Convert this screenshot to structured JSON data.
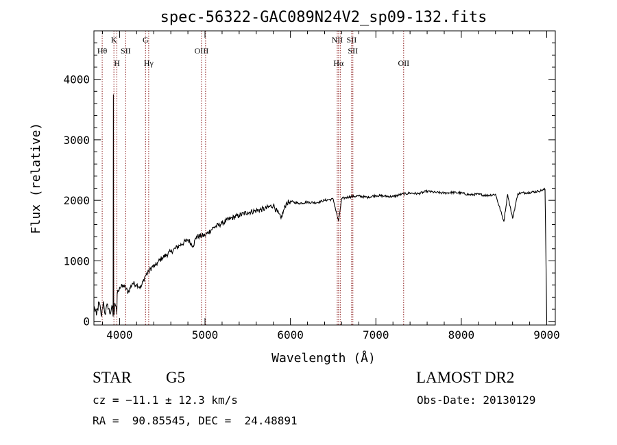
{
  "chart_data": {
    "type": "line",
    "title": "spec-56322-GAC089N24V2_sp09-132.fits",
    "xlabel": "Wavelength (Å)",
    "ylabel": "Flux (relative)",
    "xlim": [
      3700,
      9100
    ],
    "ylim": [
      -60,
      4800
    ],
    "xticks": [
      4000,
      5000,
      6000,
      7000,
      8000,
      9000
    ],
    "yticks": [
      0,
      1000,
      2000,
      3000,
      4000
    ],
    "grid": false,
    "line_color": "#000000",
    "marker_color": "#8b1a1a",
    "series": [
      {
        "x": [
          3700,
          3730,
          3760,
          3790,
          3810,
          3830,
          3860,
          3890,
          3910,
          3925,
          3928,
          3931,
          3936,
          3945,
          3955,
          3968,
          3972,
          3980,
          4000,
          4050,
          4101,
          4150,
          4200,
          4250,
          4300,
          4340,
          4380,
          4420,
          4450,
          4500,
          4600,
          4700,
          4800,
          4861,
          4900,
          5000,
          5100,
          5200,
          5300,
          5400,
          5500,
          5600,
          5700,
          5800,
          5890,
          5950,
          6000,
          6100,
          6200,
          6300,
          6400,
          6500,
          6563,
          6600,
          6700,
          6800,
          6900,
          7000,
          7100,
          7200,
          7300,
          7400,
          7500,
          7600,
          7700,
          7800,
          7900,
          8000,
          8100,
          8200,
          8300,
          8400,
          8498,
          8542,
          8600,
          8662,
          8700,
          8800,
          8900,
          8980,
          9000
        ],
        "y": [
          250,
          100,
          320,
          80,
          330,
          120,
          280,
          120,
          260,
          80,
          3750,
          160,
          100,
          300,
          260,
          120,
          450,
          520,
          560,
          590,
          480,
          630,
          610,
          560,
          750,
          820,
          900,
          920,
          980,
          1050,
          1150,
          1250,
          1350,
          1250,
          1400,
          1420,
          1550,
          1620,
          1700,
          1750,
          1800,
          1830,
          1860,
          1920,
          1700,
          1950,
          1980,
          1950,
          1970,
          1960,
          2000,
          2020,
          1650,
          2030,
          2060,
          2070,
          2050,
          2080,
          2070,
          2060,
          2100,
          2120,
          2110,
          2150,
          2130,
          2120,
          2130,
          2120,
          2090,
          2100,
          2080,
          2100,
          1650,
          2100,
          1700,
          2110,
          2120,
          2130,
          2150,
          2180,
          0
        ]
      }
    ],
    "line_markers": [
      {
        "wl": 3797,
        "label": "Hθ",
        "row": 1
      },
      {
        "wl": 3934,
        "label": "K",
        "row": 0
      },
      {
        "wl": 3969,
        "label": "H",
        "row": 2
      },
      {
        "wl": 4072,
        "label": "SII",
        "row": 1
      },
      {
        "wl": 4304,
        "label": "G",
        "row": 0
      },
      {
        "wl": 4341,
        "label": "Hγ",
        "row": 2
      },
      {
        "wl": 4959,
        "label": "OIII",
        "row": 1
      },
      {
        "wl": 5007,
        "label": "",
        "row": 1
      },
      {
        "wl": 6548,
        "label": "NII",
        "row": 0
      },
      {
        "wl": 6563,
        "label": "Hα",
        "row": 2
      },
      {
        "wl": 6583,
        "label": "",
        "row": 0
      },
      {
        "wl": 6716,
        "label": "SII",
        "row": 0
      },
      {
        "wl": 6731,
        "label": "SII",
        "row": 1
      },
      {
        "wl": 7325,
        "label": "OII",
        "row": 2
      }
    ]
  },
  "info": {
    "object_class": "STAR",
    "subclass": "G5",
    "survey": "LAMOST DR2",
    "redshift": "cz = −11.1 ± 12.3 km/s",
    "obs_date": "Obs-Date: 20130129",
    "coords": "RA =  90.85545, DEC =  24.48891"
  }
}
